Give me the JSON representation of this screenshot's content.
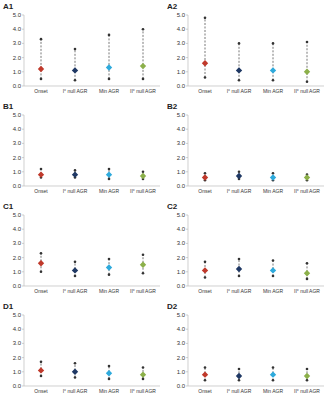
{
  "chart_data": [
    {
      "type": "errorbar",
      "title": "A1",
      "categories": [
        "Onset",
        "I° null AGR",
        "Min AGR",
        "II° null AGR"
      ],
      "values": [
        1.2,
        1.1,
        1.3,
        1.4
      ],
      "min": [
        0.5,
        0.4,
        0.5,
        0.5
      ],
      "max": [
        3.3,
        2.6,
        3.6,
        4.0
      ],
      "colors": [
        "#c0392b",
        "#1f3864",
        "#2eaadc",
        "#8cb04a"
      ],
      "marker": "diamond",
      "line_style": "dashed",
      "grid": false,
      "ylim": [
        0,
        5
      ],
      "yticks": [
        {
          "value": 0,
          "label": "0.0"
        },
        {
          "value": 1,
          "label": "1.0"
        },
        {
          "value": 2,
          "label": "2.0"
        },
        {
          "value": 3,
          "label": "3.0"
        },
        {
          "value": 4,
          "label": "4.0"
        },
        {
          "value": 5,
          "label": "5.0"
        }
      ]
    },
    {
      "type": "errorbar",
      "title": "A2",
      "categories": [
        "Onset",
        "I° null AGR",
        "Min AGR",
        "II° null AGR"
      ],
      "values": [
        1.6,
        1.1,
        1.1,
        1.0
      ],
      "min": [
        0.6,
        0.4,
        0.4,
        0.3
      ],
      "max": [
        4.8,
        3.0,
        3.0,
        3.1
      ],
      "colors": [
        "#c0392b",
        "#1f3864",
        "#2eaadc",
        "#8cb04a"
      ],
      "marker": "diamond",
      "line_style": "dashed",
      "grid": false,
      "ylim": [
        0,
        5
      ],
      "yticks": [
        {
          "value": 0,
          "label": "0.0"
        },
        {
          "value": 1,
          "label": "1.0"
        },
        {
          "value": 2,
          "label": "2.0"
        },
        {
          "value": 3,
          "label": "3.0"
        },
        {
          "value": 4,
          "label": "4.0"
        },
        {
          "value": 5,
          "label": "5.0"
        }
      ]
    },
    {
      "type": "errorbar",
      "title": "B1",
      "categories": [
        "Onset",
        "I° null AGR",
        "Min AGR",
        "II° null AGR"
      ],
      "values": [
        0.8,
        0.8,
        0.8,
        0.7
      ],
      "min": [
        0.6,
        0.6,
        0.5,
        0.5
      ],
      "max": [
        1.2,
        1.1,
        1.2,
        1.0
      ],
      "colors": [
        "#c0392b",
        "#1f3864",
        "#2eaadc",
        "#8cb04a"
      ],
      "marker": "diamond",
      "line_style": "dashed",
      "grid": false,
      "ylim": [
        0,
        5
      ],
      "yticks": [
        {
          "value": 0,
          "label": "0.0"
        },
        {
          "value": 1,
          "label": "1.0"
        },
        {
          "value": 2,
          "label": "2.0"
        },
        {
          "value": 3,
          "label": "3.0"
        },
        {
          "value": 4,
          "label": "4.0"
        },
        {
          "value": 5,
          "label": "5.0"
        }
      ]
    },
    {
      "type": "errorbar",
      "title": "B2",
      "categories": [
        "Onset",
        "I° null AGR",
        "Min AGR",
        "II° null AGR"
      ],
      "values": [
        0.6,
        0.7,
        0.6,
        0.6
      ],
      "min": [
        0.4,
        0.5,
        0.4,
        0.4
      ],
      "max": [
        0.9,
        1.0,
        0.9,
        0.8
      ],
      "colors": [
        "#c0392b",
        "#1f3864",
        "#2eaadc",
        "#8cb04a"
      ],
      "marker": "diamond",
      "line_style": "dashed",
      "grid": false,
      "ylim": [
        0,
        5
      ],
      "yticks": [
        {
          "value": 0,
          "label": "0.0"
        },
        {
          "value": 1,
          "label": "1.0"
        },
        {
          "value": 2,
          "label": "2.0"
        },
        {
          "value": 3,
          "label": "3.0"
        },
        {
          "value": 4,
          "label": "4.0"
        },
        {
          "value": 5,
          "label": "5.0"
        }
      ]
    },
    {
      "type": "errorbar",
      "title": "C1",
      "categories": [
        "Onset",
        "I° null AGR",
        "Min AGR",
        "II° null AGR"
      ],
      "values": [
        1.6,
        1.1,
        1.3,
        1.5
      ],
      "min": [
        1.0,
        0.7,
        0.8,
        0.9
      ],
      "max": [
        2.3,
        1.7,
        1.9,
        2.2
      ],
      "colors": [
        "#c0392b",
        "#1f3864",
        "#2eaadc",
        "#8cb04a"
      ],
      "marker": "diamond",
      "line_style": "dashed",
      "grid": false,
      "ylim": [
        0,
        5
      ],
      "yticks": [
        {
          "value": 0,
          "label": "0.0"
        },
        {
          "value": 1,
          "label": "1.0"
        },
        {
          "value": 2,
          "label": "2.0"
        },
        {
          "value": 3,
          "label": "3.0"
        },
        {
          "value": 4,
          "label": "4.0"
        },
        {
          "value": 5,
          "label": "5.0"
        }
      ]
    },
    {
      "type": "errorbar",
      "title": "C2",
      "categories": [
        "Onset",
        "I° null AGR",
        "Min AGR",
        "II° null AGR"
      ],
      "values": [
        1.1,
        1.2,
        1.1,
        0.9
      ],
      "min": [
        0.6,
        0.7,
        0.7,
        0.5
      ],
      "max": [
        1.7,
        1.9,
        1.8,
        1.6
      ],
      "colors": [
        "#c0392b",
        "#1f3864",
        "#2eaadc",
        "#8cb04a"
      ],
      "marker": "diamond",
      "line_style": "dashed",
      "grid": false,
      "ylim": [
        0,
        5
      ],
      "yticks": [
        {
          "value": 0,
          "label": "0.0"
        },
        {
          "value": 1,
          "label": "1.0"
        },
        {
          "value": 2,
          "label": "2.0"
        },
        {
          "value": 3,
          "label": "3.0"
        },
        {
          "value": 4,
          "label": "4.0"
        },
        {
          "value": 5,
          "label": "5.0"
        }
      ]
    },
    {
      "type": "errorbar",
      "title": "D1",
      "categories": [
        "Onset",
        "I° null AGR",
        "Min AGR",
        "II° null AGR"
      ],
      "values": [
        1.1,
        1.0,
        0.9,
        0.8
      ],
      "min": [
        0.7,
        0.6,
        0.5,
        0.5
      ],
      "max": [
        1.7,
        1.6,
        1.4,
        1.3
      ],
      "colors": [
        "#c0392b",
        "#1f3864",
        "#2eaadc",
        "#8cb04a"
      ],
      "marker": "diamond",
      "line_style": "dashed",
      "grid": false,
      "ylim": [
        0,
        5
      ],
      "yticks": [
        {
          "value": 0,
          "label": "0.0"
        },
        {
          "value": 1,
          "label": "1.0"
        },
        {
          "value": 2,
          "label": "2.0"
        },
        {
          "value": 3,
          "label": "3.0"
        },
        {
          "value": 4,
          "label": "4.0"
        },
        {
          "value": 5,
          "label": "5.0"
        }
      ]
    },
    {
      "type": "errorbar",
      "title": "D2",
      "categories": [
        "Onset",
        "I° null AGR",
        "Min AGR",
        "II° null AGR"
      ],
      "values": [
        0.8,
        0.7,
        0.8,
        0.7
      ],
      "min": [
        0.4,
        0.4,
        0.4,
        0.4
      ],
      "max": [
        1.3,
        1.2,
        1.3,
        1.2
      ],
      "colors": [
        "#c0392b",
        "#1f3864",
        "#2eaadc",
        "#8cb04a"
      ],
      "marker": "diamond",
      "line_style": "dashed",
      "grid": false,
      "ylim": [
        0,
        5
      ],
      "yticks": [
        {
          "value": 0,
          "label": "0.0"
        },
        {
          "value": 1,
          "label": "1.0"
        },
        {
          "value": 2,
          "label": "2.0"
        },
        {
          "value": 3,
          "label": "3.0"
        },
        {
          "value": 4,
          "label": "4.0"
        },
        {
          "value": 5,
          "label": "5.0"
        }
      ]
    }
  ]
}
